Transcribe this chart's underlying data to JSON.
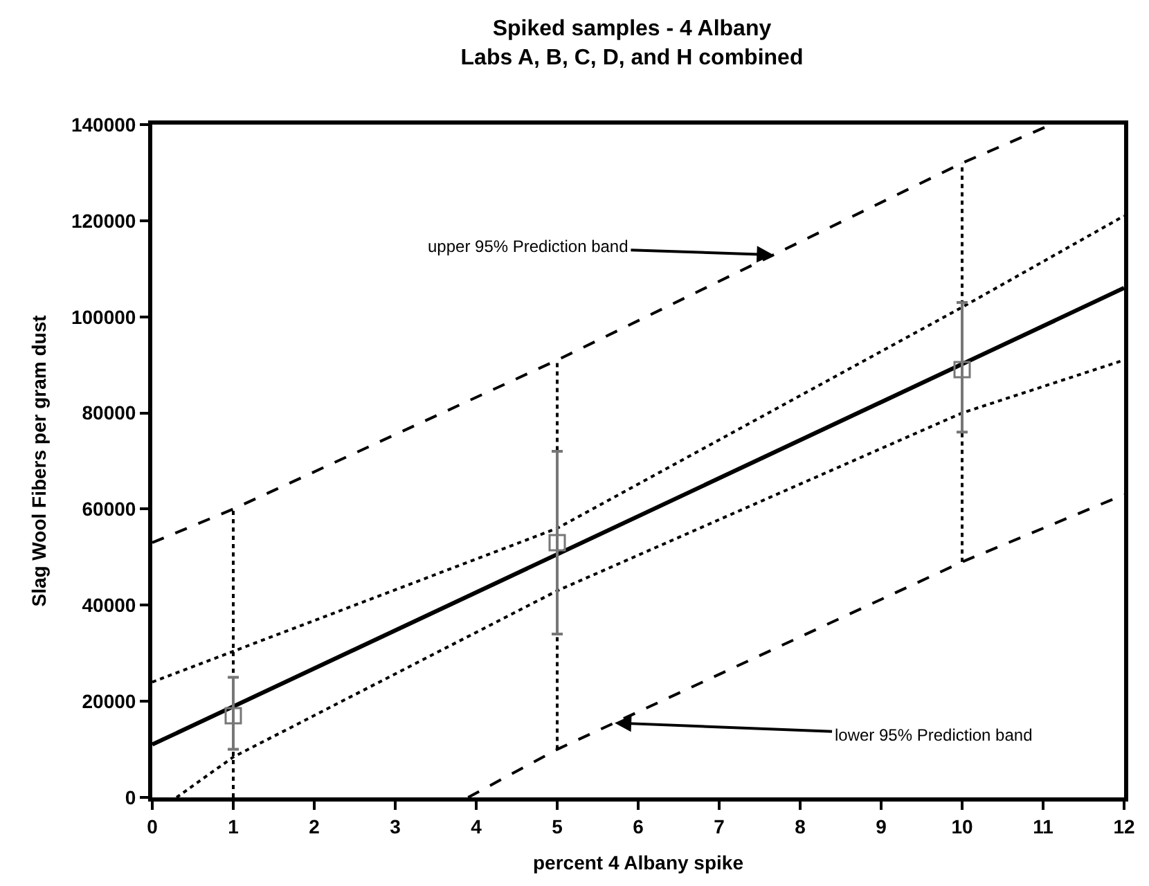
{
  "chart_data": {
    "type": "line",
    "title": "Spiked samples - 4 Albany\nLabs A, B, C, D, and H combined",
    "xlabel": "percent 4 Albany spike",
    "ylabel": "Slag Wool Fibers per gram dust",
    "xlim": [
      0,
      12
    ],
    "xticks": [
      0,
      1,
      2,
      3,
      4,
      5,
      6,
      7,
      8,
      9,
      10,
      11,
      12
    ],
    "ylim": [
      0,
      140000
    ],
    "yticks": [
      0,
      20000,
      40000,
      60000,
      80000,
      100000,
      120000,
      140000
    ],
    "series": [
      {
        "color": "#000000",
        "line_style": "solid",
        "marker": "none",
        "x": [
          0,
          12
        ],
        "values": [
          11000,
          106000
        ]
      },
      {
        "color": "#000000",
        "line_style": "dotted",
        "marker": "none",
        "x": [
          0,
          5,
          10,
          12
        ],
        "values": [
          24000,
          56000,
          102000,
          121000
        ]
      },
      {
        "color": "#000000",
        "line_style": "dotted",
        "marker": "none",
        "x": [
          0.3,
          1,
          5,
          10,
          12
        ],
        "values": [
          0,
          8400,
          43000,
          80000,
          91000
        ]
      },
      {
        "color": "#000000",
        "line_style": "dashed",
        "marker": "none",
        "x": [
          0,
          1,
          5,
          10,
          11.1
        ],
        "values": [
          53000,
          60000,
          91000,
          132000,
          140000
        ]
      },
      {
        "color": "#000000",
        "line_style": "dashed",
        "marker": "none",
        "x": [
          3.9,
          5,
          10,
          12
        ],
        "values": [
          0,
          10000,
          49000,
          63000
        ]
      },
      {
        "color": "#000000",
        "line_style": "dotted",
        "marker": "none",
        "x": [
          1,
          1
        ],
        "values": [
          0,
          60000
        ]
      },
      {
        "color": "#000000",
        "line_style": "dotted",
        "marker": "none",
        "x": [
          5,
          5
        ],
        "values": [
          10000,
          91000
        ]
      },
      {
        "color": "#000000",
        "line_style": "dotted",
        "marker": "none",
        "x": [
          10,
          10
        ],
        "values": [
          49000,
          132000
        ]
      },
      {
        "type": "scatter",
        "color": "#777777",
        "marker": "square",
        "x": [
          1,
          5,
          10
        ],
        "values": [
          17000,
          53000,
          89000
        ],
        "errors": [
          [
            10000,
            25000
          ],
          [
            34000,
            72000
          ],
          [
            76000,
            103000
          ]
        ]
      }
    ],
    "annotations": [
      {
        "text": "upper 95% Prediction band",
        "x": 7.67,
        "y": 112900
      },
      {
        "text": "lower 95% Prediction band",
        "x": 5.71,
        "y": 15500
      }
    ]
  }
}
